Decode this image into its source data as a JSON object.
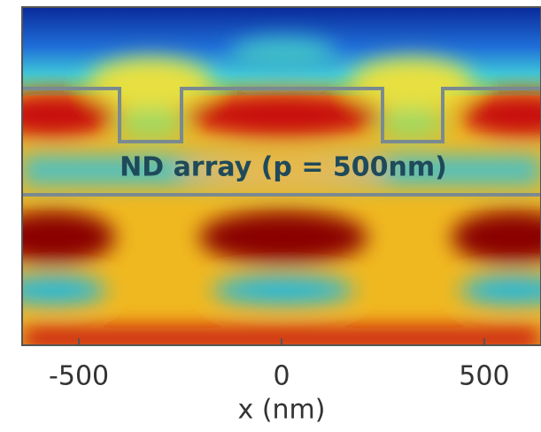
{
  "chart_data": {
    "type": "heatmap",
    "annotation": "ND array (p = 500nm)",
    "xlabel": "x (nm)",
    "xlim": [
      -640,
      640
    ],
    "xticks": [
      -500,
      0,
      500
    ]
  }
}
